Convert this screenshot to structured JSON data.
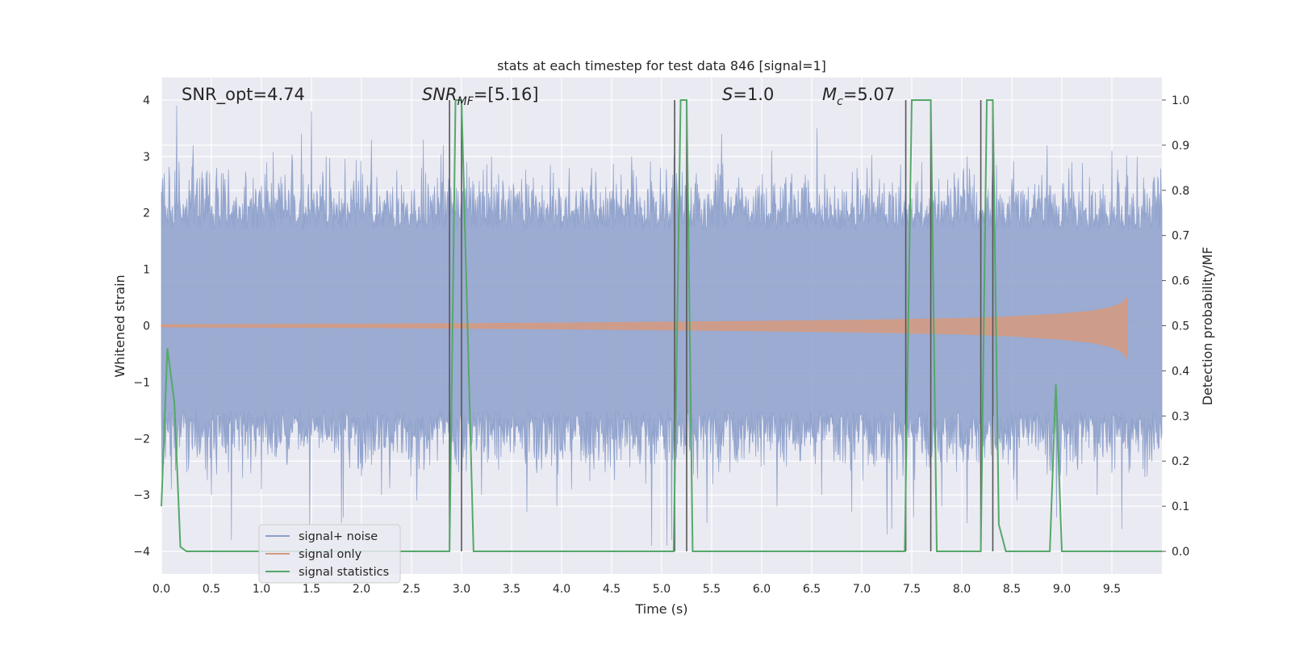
{
  "chart_data": {
    "type": "line",
    "title": "stats at each timestep for test data 846 [signal=1]",
    "xlabel": "Time (s)",
    "ylabel_left": "Whitened strain",
    "ylabel_right": "Detection probability/MF",
    "xlim": [
      0.0,
      10.0
    ],
    "ylim_left": [
      -4.4,
      4.4
    ],
    "ylim_right": [
      -0.05,
      1.05
    ],
    "x_ticks": [
      0.0,
      0.5,
      1.0,
      1.5,
      2.0,
      2.5,
      3.0,
      3.5,
      4.0,
      4.5,
      5.0,
      5.5,
      6.0,
      6.5,
      7.0,
      7.5,
      8.0,
      8.5,
      9.0,
      9.5
    ],
    "x_tick_labels": [
      "0.0",
      "0.5",
      "1.0",
      "1.5",
      "2.0",
      "2.5",
      "3.0",
      "3.5",
      "4.0",
      "4.5",
      "5.0",
      "5.5",
      "6.0",
      "6.5",
      "7.0",
      "7.5",
      "8.0",
      "8.5",
      "9.0",
      "9.5"
    ],
    "y_left_ticks": [
      -4,
      -3,
      -2,
      -1,
      0,
      1,
      2,
      3,
      4
    ],
    "y_left_tick_labels": [
      "−4",
      "−3",
      "−2",
      "−1",
      "0",
      "1",
      "2",
      "3",
      "4"
    ],
    "y_right_ticks": [
      0.0,
      0.1,
      0.2,
      0.3,
      0.4,
      0.5,
      0.6,
      0.7,
      0.8,
      0.9,
      1.0
    ],
    "y_right_tick_labels": [
      "0.0",
      "0.1",
      "0.2",
      "0.3",
      "0.4",
      "0.5",
      "0.6",
      "0.7",
      "0.8",
      "0.9",
      "1.0"
    ],
    "grid": true,
    "legend_position": "lower-left",
    "annotations": {
      "snr_opt": "SNR_opt=4.74",
      "snr_mf_main": "SNR",
      "snr_mf_sub": "MF",
      "snr_mf_rest": "=[5.16]",
      "s_main": "S",
      "s_rest": "=1.0",
      "mc_main": "M",
      "mc_sub": "c",
      "mc_rest": "=5.07"
    },
    "series": [
      {
        "name": "signal+ noise",
        "color": "#8da0cb",
        "axis": "left",
        "kind": "noise",
        "band_upper_approx": 1.7,
        "band_lower_approx": -1.5,
        "peak_x": [
          0.03,
          0.15,
          0.32,
          0.55,
          0.7,
          1.05,
          1.4,
          1.5,
          1.65,
          1.82,
          2.1,
          2.4,
          2.62,
          2.82,
          3.05,
          3.3,
          3.6,
          3.95,
          4.3,
          4.7,
          5.05,
          5.35,
          5.6,
          6.1,
          6.55,
          6.95,
          7.3,
          7.6,
          8.05,
          8.5,
          8.85,
          9.1,
          9.5,
          9.75,
          9.95
        ],
        "peak_y": [
          2.7,
          3.9,
          3.2,
          2.8,
          -3.8,
          2.9,
          3.4,
          3.8,
          3.0,
          -3.4,
          3.3,
          2.5,
          3.3,
          3.2,
          2.9,
          3.0,
          2.6,
          -3.2,
          2.8,
          3.0,
          -3.9,
          2.7,
          3.4,
          3.1,
          3.5,
          2.8,
          -3.6,
          2.9,
          3.0,
          2.6,
          3.2,
          2.9,
          3.1,
          3.0,
          2.2
        ],
        "valley_x": [
          0.1,
          0.25,
          0.5,
          0.7,
          1.0,
          1.48,
          1.8,
          2.2,
          2.55,
          3.2,
          3.65,
          4.1,
          4.9,
          5.1,
          5.45,
          6.15,
          6.6,
          6.9,
          7.25,
          7.52,
          7.8,
          8.05,
          8.55,
          8.95,
          9.35,
          9.6
        ],
        "valley_y": [
          -2.9,
          -2.6,
          -3.0,
          -3.8,
          -2.9,
          -3.6,
          -3.5,
          -3.0,
          -3.1,
          -3.0,
          -3.3,
          -2.9,
          -3.9,
          -3.8,
          -3.5,
          -3.2,
          -3.0,
          -3.3,
          -3.7,
          -3.4,
          -3.2,
          -3.5,
          -3.1,
          -3.4,
          -3.0,
          -3.6
        ]
      },
      {
        "name": "signal only",
        "color": "#d49a82",
        "axis": "left",
        "kind": "chirp",
        "t_merger": 9.65,
        "envelope_x": [
          0.0,
          2.0,
          4.0,
          6.0,
          7.0,
          8.0,
          8.5,
          9.0,
          9.3,
          9.5,
          9.6,
          9.65
        ],
        "envelope_amplitude": [
          0.02,
          0.03,
          0.05,
          0.08,
          0.1,
          0.13,
          0.16,
          0.21,
          0.26,
          0.33,
          0.4,
          0.5
        ]
      },
      {
        "name": "signal statistics",
        "color": "#55a868",
        "axis": "right",
        "x": [
          0.0,
          0.06,
          0.13,
          0.19,
          0.25,
          2.88,
          2.94,
          3.0,
          3.12,
          5.12,
          5.19,
          5.25,
          5.31,
          7.43,
          7.5,
          7.69,
          7.75,
          8.19,
          8.25,
          8.31,
          8.37,
          8.44,
          8.88,
          8.94,
          9.0,
          10.0
        ],
        "values": [
          0.1,
          0.45,
          0.33,
          0.01,
          0.0,
          0.0,
          1.0,
          1.0,
          0.0,
          0.0,
          1.0,
          1.0,
          0.0,
          0.0,
          1.0,
          1.0,
          0.0,
          0.0,
          1.0,
          1.0,
          0.06,
          0.0,
          0.0,
          0.37,
          0.0,
          0.0
        ]
      }
    ],
    "markers": {
      "name": "detection markers",
      "color": "#555555",
      "x": [
        2.88,
        3.0,
        5.13,
        5.25,
        7.44,
        7.69,
        8.19,
        8.31
      ]
    }
  }
}
